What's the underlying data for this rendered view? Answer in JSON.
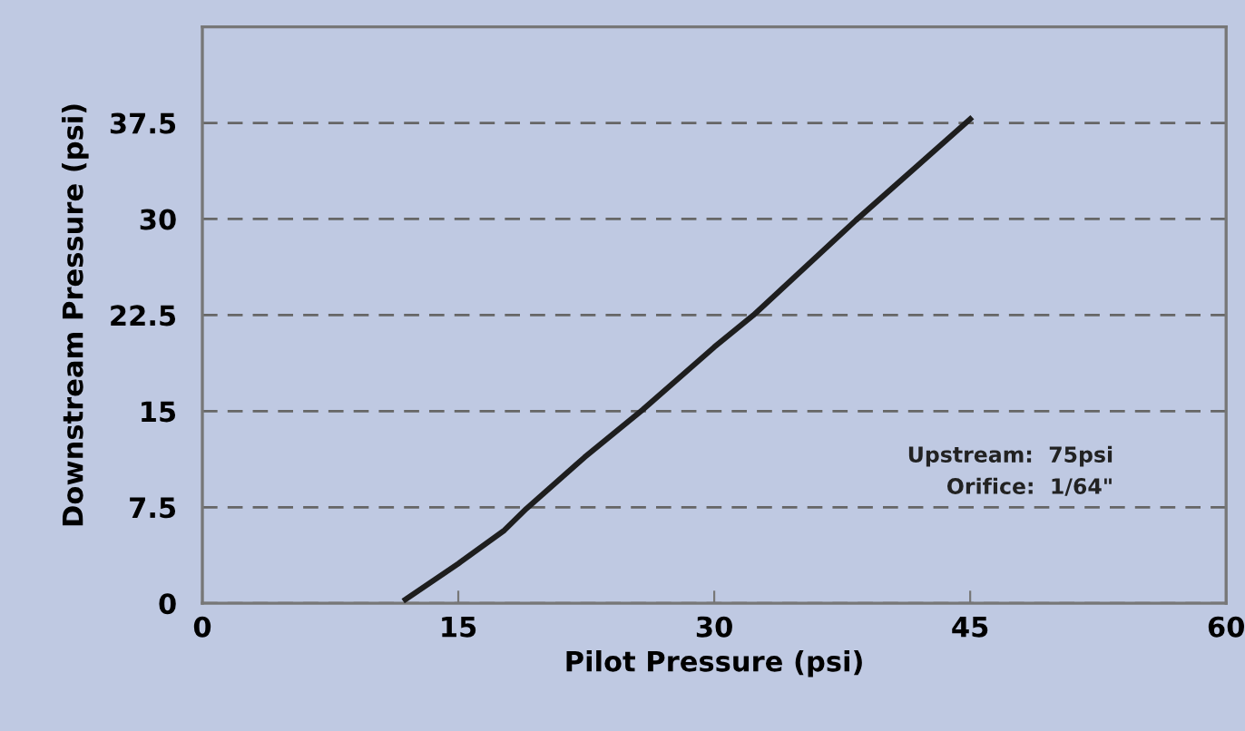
{
  "chart_data": {
    "type": "line",
    "xlabel": "Pilot Pressure (psi)",
    "ylabel": "Downstream Pressure (psi)",
    "x": [
      11.9,
      15.0,
      17.7,
      19.0,
      22.4,
      25.8,
      30.0,
      32.3,
      38.3,
      45.0
    ],
    "series": [
      {
        "color": "#1e1e1e",
        "values": [
          0.3,
          3.1,
          5.7,
          7.4,
          11.4,
          15.1,
          20.0,
          22.5,
          29.9,
          37.8
        ]
      }
    ],
    "xlim": [
      0,
      60
    ],
    "xticks": [
      0,
      15,
      30,
      45,
      60
    ],
    "ylim": [
      0,
      45
    ],
    "yticks": [
      0,
      7.5,
      15,
      22.5,
      30,
      37.5
    ],
    "grid": "y",
    "legend": false,
    "marker": "none",
    "line_style": "solid",
    "annotations": [
      "Upstream:  75psi",
      "Orifice:  1/64\""
    ]
  }
}
